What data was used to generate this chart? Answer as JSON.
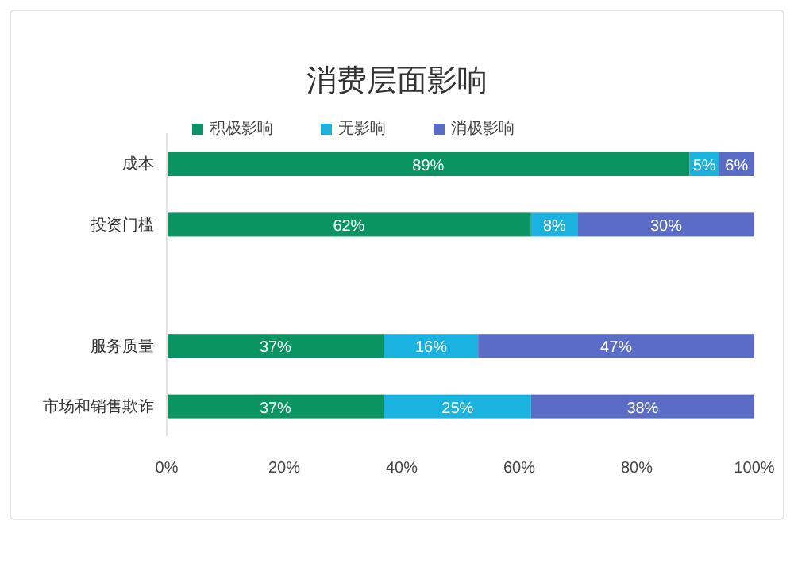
{
  "chart_data": {
    "type": "bar",
    "orientation": "horizontal",
    "stacked": true,
    "title": "消费层面影响",
    "categories": [
      "成本",
      "投资门槛",
      null,
      "服务质量",
      "市场和销售欺诈"
    ],
    "series": [
      {
        "name": "积极影响",
        "color": "#0a9463",
        "values": [
          89,
          62,
          null,
          37,
          37
        ],
        "value_labels": [
          "89%",
          "62%",
          null,
          "37%",
          "37%"
        ]
      },
      {
        "name": "无影响",
        "color": "#1ab3e0",
        "values": [
          5,
          8,
          null,
          16,
          25
        ],
        "value_labels": [
          "5%",
          "8%",
          null,
          "16%",
          "25%"
        ]
      },
      {
        "name": "消极影响",
        "color": "#5b6cc6",
        "values": [
          6,
          30,
          null,
          47,
          38
        ],
        "value_labels": [
          "6%",
          "30%",
          null,
          "47%",
          "38%"
        ]
      }
    ],
    "xlim": [
      0,
      100
    ],
    "xticks": [
      {
        "value": 0,
        "label": "0%"
      },
      {
        "value": 20,
        "label": "20%"
      },
      {
        "value": 40,
        "label": "40%"
      },
      {
        "value": 60,
        "label": "60%"
      },
      {
        "value": 80,
        "label": "80%"
      },
      {
        "value": 100,
        "label": "100%"
      }
    ],
    "grid": false,
    "legend": "top"
  }
}
